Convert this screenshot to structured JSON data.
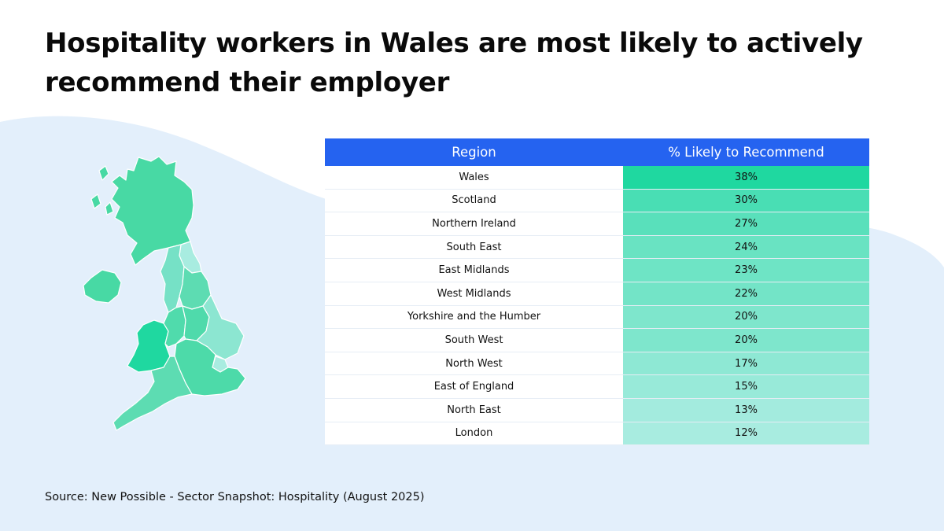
{
  "title": "Hospitality workers in Wales are most likely to actively recommend their employer",
  "source": "Source: New Possible - Sector Snapshot: Hospitality (August 2025)",
  "colors": {
    "header_bg": "#2563f0",
    "value_high": "#1fd8a0",
    "value_low": "#a8ece0",
    "background_wave": "#e3effb",
    "map_fill": "#48d9a4"
  },
  "chart_data": {
    "type": "table",
    "columns": [
      "Region",
      "% Likely to Recommend"
    ],
    "rows": [
      {
        "region": "Wales",
        "value": 38,
        "label": "38%"
      },
      {
        "region": "Scotland",
        "value": 30,
        "label": "30%"
      },
      {
        "region": "Northern Ireland",
        "value": 27,
        "label": "27%"
      },
      {
        "region": "South East",
        "value": 24,
        "label": "24%"
      },
      {
        "region": "East Midlands",
        "value": 23,
        "label": "23%"
      },
      {
        "region": "West Midlands",
        "value": 22,
        "label": "22%"
      },
      {
        "region": "Yorkshire and the Humber",
        "value": 20,
        "label": "20%"
      },
      {
        "region": "South West",
        "value": 20,
        "label": "20%"
      },
      {
        "region": "North West",
        "value": 17,
        "label": "17%"
      },
      {
        "region": "East of England",
        "value": 15,
        "label": "15%"
      },
      {
        "region": "North East",
        "value": 13,
        "label": "13%"
      },
      {
        "region": "London",
        "value": 12,
        "label": "12%"
      }
    ]
  }
}
